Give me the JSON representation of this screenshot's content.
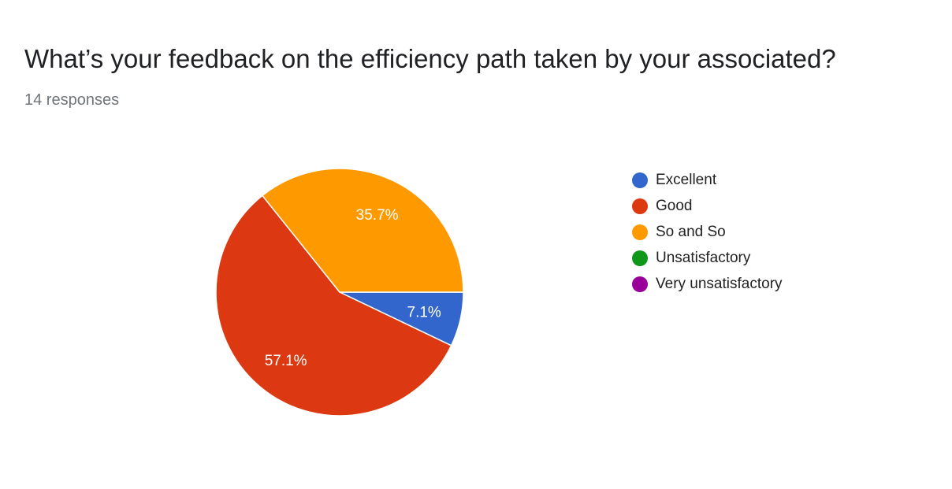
{
  "title": "What’s your feedback on the efficiency path taken by your associated?",
  "subtitle": "14 responses",
  "chart_data": {
    "type": "pie",
    "title": "What’s your feedback on the efficiency path taken by your associated?",
    "categories": [
      "Excellent",
      "Good",
      "So and So",
      "Unsatisfactory",
      "Very unsatisfactory"
    ],
    "values": [
      7.1,
      57.1,
      35.7,
      0,
      0
    ],
    "counts": [
      1,
      8,
      5,
      0,
      0
    ],
    "labels": [
      "7.1%",
      "57.1%",
      "35.7%",
      "",
      ""
    ],
    "colors": [
      "#3366cc",
      "#dc3912",
      "#ff9900",
      "#109618",
      "#990099"
    ],
    "legend_position": "right"
  }
}
